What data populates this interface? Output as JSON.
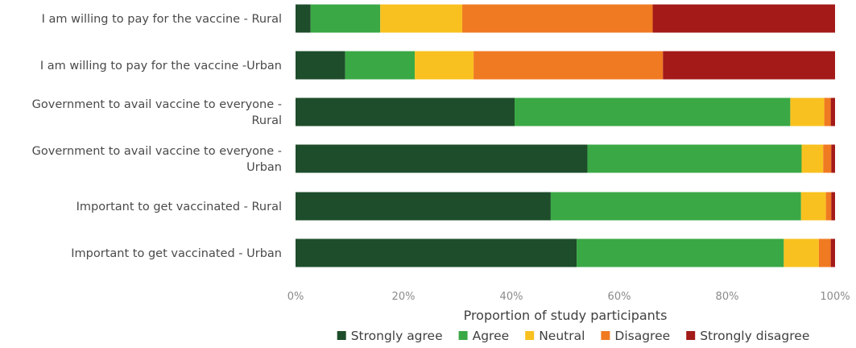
{
  "chart_data": {
    "type": "bar",
    "orientation": "horizontal",
    "stacked": true,
    "title": "",
    "xlabel": "Proportion of study participants",
    "ylabel": "",
    "xlim": [
      0,
      100
    ],
    "x_ticks": [
      "0%",
      "20%",
      "40%",
      "60%",
      "80%",
      "100%"
    ],
    "categories": [
      [
        "I am willing to pay for the vaccine - Rural"
      ],
      [
        "I am willing to pay for the vaccine -Urban"
      ],
      [
        "Government to avail vaccine to everyone -",
        "Rural"
      ],
      [
        "Government to avail vaccine to everyone -",
        "Urban"
      ],
      [
        "Important to get vaccinated - Rural"
      ],
      [
        "Important to get vaccinated - Urban"
      ]
    ],
    "series": [
      {
        "name": "Strongly agree",
        "color": "#1e4d2b",
        "values": [
          2.8,
          9.2,
          40.6,
          54.1,
          47.3,
          52.1
        ]
      },
      {
        "name": "Agree",
        "color": "#3aa845",
        "values": [
          12.9,
          12.9,
          51.1,
          39.7,
          46.4,
          38.4
        ]
      },
      {
        "name": "Neutral",
        "color": "#f9c11f",
        "values": [
          15.2,
          10.9,
          6.3,
          4.0,
          4.6,
          6.5
        ]
      },
      {
        "name": "Disagree",
        "color": "#f07a22",
        "values": [
          35.3,
          35.1,
          1.2,
          1.5,
          1.0,
          2.2
        ]
      },
      {
        "name": "Strongly disagree",
        "color": "#a31a18",
        "values": [
          33.8,
          31.9,
          0.8,
          0.7,
          0.7,
          0.8
        ]
      }
    ],
    "grid": false,
    "legend_position": "bottom"
  }
}
